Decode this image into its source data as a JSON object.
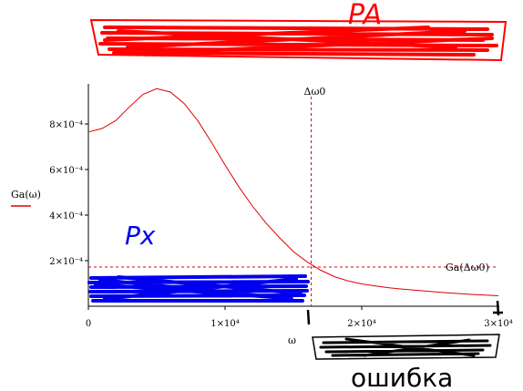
{
  "chart_data": {
    "type": "line",
    "function_label": "Ga(ω)",
    "x_variable_label": "ω",
    "xlim": [
      0,
      30000
    ],
    "ylim": [
      0,
      0.001
    ],
    "x_ticks": [
      {
        "value": 0,
        "label": "0"
      },
      {
        "value": 10000,
        "label": "1×10⁴"
      },
      {
        "value": 20000,
        "label": "2×10⁴"
      },
      {
        "value": 30000,
        "label": "3×10⁴"
      }
    ],
    "y_ticks": [
      {
        "value": 0.0002,
        "label": "2×10⁻⁴"
      },
      {
        "value": 0.0004,
        "label": "4×10⁻⁴"
      },
      {
        "value": 0.0006,
        "label": "6×10⁻⁴"
      },
      {
        "value": 0.0008,
        "label": "8×10⁻⁴"
      }
    ],
    "series": [
      {
        "name": "Ga(ω)",
        "color": "#e00000",
        "x": [
          0,
          1000,
          2000,
          3000,
          4000,
          5000,
          6000,
          7000,
          8000,
          9000,
          10000,
          11000,
          12000,
          13000,
          14000,
          15000,
          16000,
          17000,
          18000,
          19000,
          20000,
          21000,
          22000,
          23000,
          24000,
          25000,
          26000,
          27000,
          28000,
          29000,
          30000
        ],
        "y": [
          0.000765,
          0.00078,
          0.000815,
          0.000875,
          0.00093,
          0.000955,
          0.00094,
          0.00089,
          0.000815,
          0.00072,
          0.00062,
          0.000525,
          0.00044,
          0.000365,
          0.0003,
          0.00024,
          0.000195,
          0.000158,
          0.00013,
          0.000111,
          9.8e-05,
          8.9e-05,
          8.1e-05,
          7.5e-05,
          7e-05,
          6.5e-05,
          6e-05,
          5.6e-05,
          5.2e-05,
          4.9e-05,
          4.6e-05
        ]
      }
    ],
    "markers": {
      "vertical_line": {
        "x": 16300,
        "label": "Δω0",
        "color": "#e00000"
      },
      "horizontal_line": {
        "y": 0.000172,
        "label": "Ga(Δω0)",
        "color": "#e00000"
      }
    },
    "annotations": {
      "handwritten_top": "PA",
      "handwritten_mid": "Px",
      "handwritten_bottom": "ошибка"
    },
    "annotation_colors": {
      "red": "#ff0000",
      "blue": "#0000ee",
      "black": "#000000"
    }
  }
}
